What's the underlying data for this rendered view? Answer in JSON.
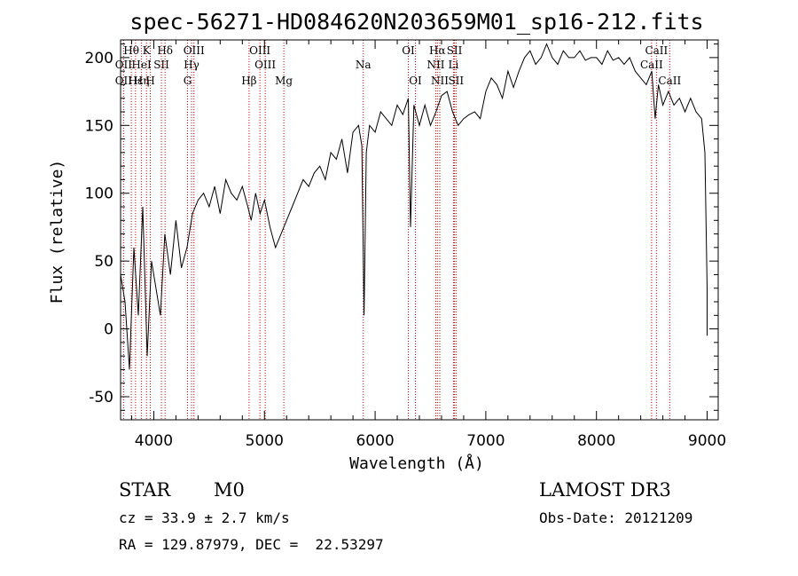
{
  "chart_data": {
    "type": "line",
    "title": "spec-56271-HD084620N203659M01_sp16-212.fits",
    "xlabel": "Wavelength (Å)",
    "ylabel": "Flux (relative)",
    "xlim": [
      3700,
      9100
    ],
    "ylim": [
      -67,
      213
    ],
    "xticks": [
      4000,
      5000,
      6000,
      7000,
      8000,
      9000
    ],
    "yticks": [
      -50,
      0,
      50,
      100,
      150,
      200
    ],
    "series": [
      {
        "name": "spectrum",
        "x": [
          3700,
          3740,
          3780,
          3820,
          3860,
          3900,
          3940,
          3980,
          4020,
          4060,
          4100,
          4150,
          4200,
          4250,
          4300,
          4350,
          4400,
          4450,
          4500,
          4550,
          4600,
          4650,
          4700,
          4750,
          4800,
          4850,
          4880,
          4920,
          4960,
          5000,
          5050,
          5100,
          5150,
          5200,
          5250,
          5300,
          5350,
          5400,
          5450,
          5500,
          5550,
          5600,
          5650,
          5700,
          5750,
          5800,
          5850,
          5880,
          5900,
          5920,
          5950,
          6000,
          6050,
          6100,
          6150,
          6200,
          6250,
          6300,
          6320,
          6350,
          6400,
          6450,
          6500,
          6550,
          6600,
          6650,
          6700,
          6750,
          6800,
          6850,
          6900,
          6950,
          7000,
          7050,
          7100,
          7150,
          7200,
          7250,
          7300,
          7350,
          7400,
          7450,
          7500,
          7550,
          7600,
          7650,
          7700,
          7750,
          7800,
          7850,
          7900,
          7950,
          8000,
          8050,
          8100,
          8150,
          8200,
          8250,
          8300,
          8350,
          8400,
          8450,
          8500,
          8530,
          8560,
          8600,
          8650,
          8700,
          8750,
          8800,
          8850,
          8900,
          8950,
          8980,
          9000,
          9000
        ],
        "y": [
          40,
          20,
          -30,
          60,
          10,
          90,
          -20,
          50,
          30,
          10,
          70,
          40,
          80,
          45,
          60,
          85,
          95,
          100,
          90,
          105,
          85,
          110,
          100,
          95,
          105,
          90,
          80,
          100,
          85,
          95,
          75,
          60,
          70,
          80,
          90,
          100,
          110,
          105,
          115,
          120,
          110,
          130,
          125,
          140,
          115,
          145,
          150,
          135,
          10,
          130,
          150,
          145,
          160,
          155,
          150,
          165,
          158,
          170,
          75,
          165,
          150,
          165,
          150,
          160,
          172,
          175,
          160,
          150,
          155,
          158,
          160,
          155,
          175,
          185,
          180,
          170,
          190,
          178,
          190,
          200,
          205,
          195,
          200,
          210,
          200,
          195,
          205,
          200,
          200,
          205,
          198,
          200,
          200,
          195,
          205,
          198,
          200,
          195,
          200,
          190,
          185,
          180,
          190,
          155,
          180,
          165,
          175,
          165,
          170,
          160,
          170,
          160,
          155,
          130,
          30,
          -5
        ]
      }
    ],
    "line_labels": [
      {
        "text": "Hθ",
        "x": 3797,
        "row": 1
      },
      {
        "text": "OII",
        "x": 3727,
        "row": 2
      },
      {
        "text": "OII",
        "x": 3727,
        "row": 3
      },
      {
        "text": "Hε",
        "x": 3835,
        "row": 3
      },
      {
        "text": "K",
        "x": 3934,
        "row": 1
      },
      {
        "text": "HeI",
        "x": 3889,
        "row": 2
      },
      {
        "text": "SII",
        "x": 4069,
        "row": 2
      },
      {
        "text": "Hη",
        "x": 3889,
        "row": 3
      },
      {
        "text": "H",
        "x": 3969,
        "row": 3
      },
      {
        "text": "Hδ",
        "x": 4102,
        "row": 1
      },
      {
        "text": "OIII",
        "x": 4363,
        "row": 1
      },
      {
        "text": "Hγ",
        "x": 4341,
        "row": 2
      },
      {
        "text": "G",
        "x": 4305,
        "row": 3
      },
      {
        "text": "OIII",
        "x": 4959,
        "row": 1
      },
      {
        "text": "OIII",
        "x": 5007,
        "row": 2
      },
      {
        "text": "Hβ",
        "x": 4861,
        "row": 3
      },
      {
        "text": "Mg",
        "x": 5175,
        "row": 3
      },
      {
        "text": "Na",
        "x": 5893,
        "row": 2
      },
      {
        "text": "OI",
        "x": 6300,
        "row": 1
      },
      {
        "text": "OI",
        "x": 6364,
        "row": 3
      },
      {
        "text": "Hα",
        "x": 6563,
        "row": 1
      },
      {
        "text": "SII",
        "x": 6717,
        "row": 1
      },
      {
        "text": "NII",
        "x": 6548,
        "row": 2
      },
      {
        "text": "Li",
        "x": 6708,
        "row": 2
      },
      {
        "text": "NII",
        "x": 6584,
        "row": 3
      },
      {
        "text": "SII",
        "x": 6731,
        "row": 3
      },
      {
        "text": "CaII",
        "x": 8542,
        "row": 1
      },
      {
        "text": "CaII",
        "x": 8498,
        "row": 2
      },
      {
        "text": "CaII",
        "x": 8662,
        "row": 3
      }
    ],
    "line_marks": [
      3727,
      3797,
      3835,
      3889,
      3934,
      3969,
      4069,
      4102,
      4305,
      4341,
      4363,
      4861,
      4959,
      5007,
      5175,
      5893,
      6300,
      6364,
      6548,
      6563,
      6584,
      6708,
      6717,
      6731,
      8498,
      8542,
      8662
    ]
  },
  "info": {
    "class_label": "STAR",
    "subclass": "M0",
    "cz": "cz = 33.9 ± 2.7 km/s",
    "coords": "RA = 129.87979, DEC =  22.53297",
    "survey": "LAMOST DR3",
    "obs_date": "Obs-Date: 20121209"
  },
  "colors": {
    "spectrum": "#000000",
    "lines": "#cc0000",
    "axes": "#000000"
  }
}
